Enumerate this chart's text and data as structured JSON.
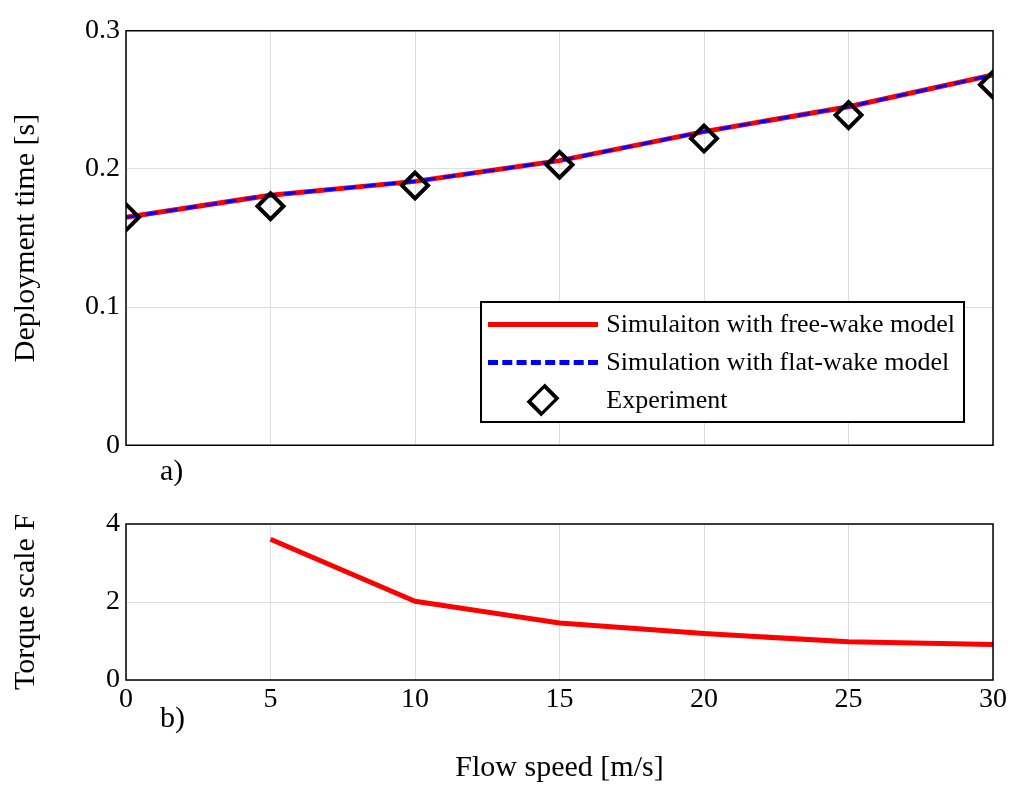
{
  "chart_data": [
    {
      "type": "line",
      "x": [
        0,
        5,
        10,
        15,
        20,
        25,
        30
      ],
      "ylabel": "Deployment time [s]",
      "xlim": [
        0,
        30
      ],
      "xticks": [
        0,
        5,
        10,
        15,
        20,
        25,
        30
      ],
      "ylim": [
        0,
        0.3
      ],
      "yticks": [
        0,
        0.1,
        0.2,
        0.3
      ],
      "tick_labels": "y",
      "grid": true,
      "legend": "bottom right",
      "annotations": [
        "a)"
      ],
      "series": [
        {
          "name": "Simulaiton with free-wake model",
          "color": "#ff0000",
          "line_style": "solid",
          "marker": "none",
          "values": [
            0.165,
            0.181,
            0.191,
            0.206,
            0.227,
            0.245,
            0.268
          ]
        },
        {
          "name": "Simulation with flat-wake model",
          "color": "#0000ff",
          "line_style": "dashed",
          "marker": "none",
          "values": [
            0.165,
            0.181,
            0.191,
            0.206,
            0.227,
            0.245,
            0.268
          ]
        },
        {
          "name": "Experiment",
          "type": "scatter",
          "color": "#000000",
          "marker": "diamond",
          "values": [
            0.165,
            0.173,
            0.188,
            0.203,
            0.222,
            0.239,
            0.261
          ]
        }
      ]
    },
    {
      "type": "line",
      "x": [
        5,
        10,
        15,
        20,
        25,
        30
      ],
      "xlabel": "Flow speed [m/s]",
      "ylabel": "Torque scale F",
      "xlim": [
        0,
        30
      ],
      "xticks": [
        0,
        5,
        10,
        15,
        20,
        25,
        30
      ],
      "ylim": [
        0,
        4
      ],
      "yticks": [
        0,
        2,
        4
      ],
      "grid": true,
      "annotations": [
        "b)"
      ],
      "series": [
        {
          "color": "#ff0000",
          "line_style": "solid",
          "marker": "none",
          "values": [
            3.61,
            2.02,
            1.46,
            1.19,
            0.98,
            0.91
          ]
        }
      ]
    }
  ]
}
